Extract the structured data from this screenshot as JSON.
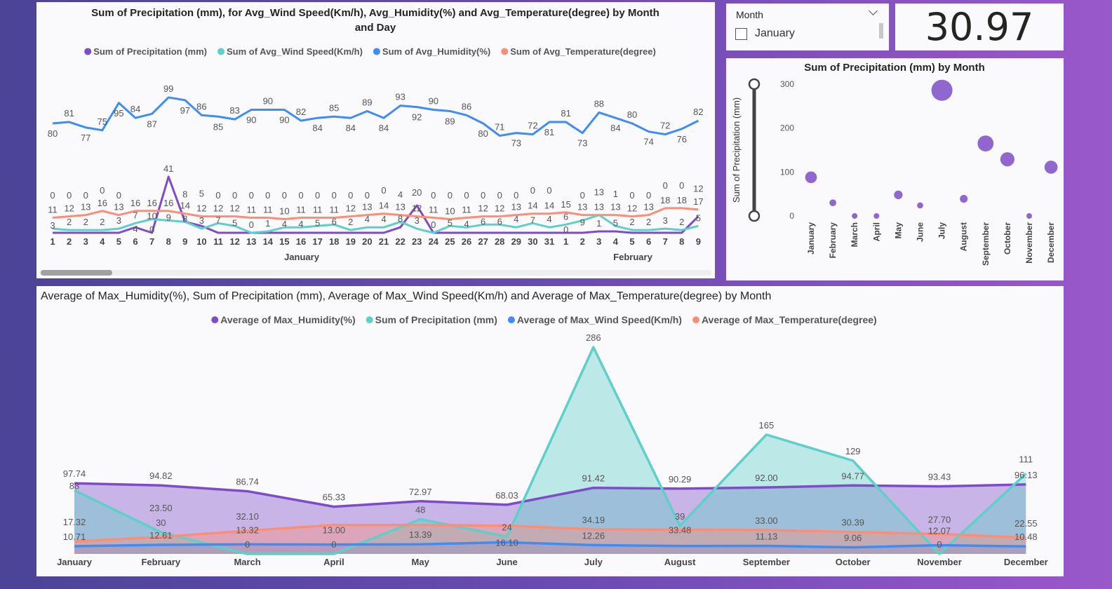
{
  "colors": {
    "purple": "#7d4cc6",
    "teal": "#5fcfc9",
    "blue": "#3f8cf5",
    "orange": "#fb8e77"
  },
  "top_chart": {
    "title_line1": "Sum of Precipitation (mm), for Avg_Wind Speed(Km/h), Avg_Humidity(%) and Avg_Temperature(degree) by Month",
    "title_line2": "and Day",
    "legend": [
      "Sum of Precipitation (mm)",
      "Sum of Avg_Wind Speed(Km/h)",
      "Sum of Avg_Humidity(%)",
      "Sum of Avg_Temperature(degree)"
    ],
    "chart_data": {
      "type": "line",
      "days": [
        "1",
        "2",
        "3",
        "4",
        "5",
        "6",
        "7",
        "8",
        "9",
        "10",
        "11",
        "12",
        "13",
        "14",
        "15",
        "16",
        "17",
        "18",
        "19",
        "20",
        "21",
        "22",
        "23",
        "24",
        "25",
        "26",
        "27",
        "28",
        "29",
        "30",
        "31",
        "1",
        "2",
        "3",
        "4",
        "5",
        "6",
        "7",
        "8",
        "9"
      ],
      "months": [
        "January",
        "February"
      ],
      "series": [
        {
          "name": "Sum of Precipitation (mm)",
          "color": "purple",
          "values": [
            0,
            0,
            0,
            0,
            0,
            4,
            0,
            41,
            8,
            5,
            0,
            0,
            0,
            0,
            0,
            0,
            0,
            0,
            0,
            0,
            0,
            4,
            20,
            0,
            0,
            0,
            0,
            0,
            0,
            0,
            0,
            0,
            0,
            1,
            1,
            0,
            0,
            0,
            0,
            12
          ]
        },
        {
          "name": "Sum of Avg_Wind Speed(Km/h)",
          "color": "teal",
          "values": [
            3,
            2,
            2,
            2,
            3,
            7,
            10,
            9,
            8,
            3,
            7,
            5,
            0,
            1,
            4,
            4,
            5,
            6,
            2,
            4,
            4,
            8,
            3,
            0,
            5,
            4,
            6,
            6,
            4,
            7,
            4,
            6,
            9,
            13,
            5,
            2,
            2,
            3,
            2,
            5
          ]
        },
        {
          "name": "Sum of Avg_Humidity(%)",
          "color": "blue",
          "values": [
            80,
            81,
            77,
            75,
            95,
            84,
            87,
            99,
            97,
            86,
            85,
            83,
            90,
            90,
            90,
            82,
            84,
            85,
            84,
            89,
            84,
            93,
            92,
            90,
            89,
            86,
            80,
            71,
            73,
            72,
            81,
            81,
            73,
            88,
            84,
            80,
            74,
            72,
            76,
            82
          ]
        },
        {
          "name": "Sum of Avg_Temperature(degree)",
          "color": "orange",
          "values": [
            11,
            12,
            13,
            16,
            13,
            16,
            16,
            16,
            14,
            12,
            12,
            12,
            11,
            11,
            10,
            11,
            11,
            11,
            12,
            13,
            14,
            13,
            12,
            11,
            10,
            11,
            12,
            12,
            13,
            14,
            14,
            15,
            13,
            13,
            13,
            12,
            13,
            18,
            18,
            17
          ]
        }
      ]
    }
  },
  "slicer": {
    "title": "Month",
    "item": "January",
    "checked": false
  },
  "card": {
    "value": "30.97"
  },
  "bubble_chart": {
    "title": "Sum of Precipitation (mm) by Month",
    "chart_data": {
      "type": "scatter",
      "ylabel": "Sum of Precipitation (mm)",
      "yticks": [
        "0",
        "100",
        "200",
        "300"
      ],
      "ylim": [
        0,
        300
      ],
      "categories": [
        "January",
        "February",
        "March",
        "April",
        "May",
        "June",
        "July",
        "August",
        "September",
        "October",
        "November",
        "December"
      ],
      "values": [
        88,
        30,
        0,
        0,
        48,
        24,
        286,
        39,
        165,
        129,
        0,
        111
      ]
    }
  },
  "bottom_chart": {
    "title": "Average of Max_Humidity(%), Sum of Precipitation (mm), Average of Max_Wind Speed(Km/h) and Average of Max_Temperature(degree) by Month",
    "chart_data": {
      "type": "area",
      "categories": [
        "January",
        "February",
        "March",
        "April",
        "May",
        "June",
        "July",
        "August",
        "September",
        "October",
        "November",
        "December"
      ],
      "series": [
        {
          "name": "Average of Max_Humidity(%)",
          "color": "purple",
          "values": [
            97.74,
            94.82,
            86.74,
            65.33,
            72.97,
            68.03,
            91.42,
            90.29,
            92.0,
            94.77,
            93.43,
            96.13
          ],
          "labels": [
            "97.74",
            "94.82",
            "86.74",
            "65.33",
            "72.97",
            "68.03",
            "91.42",
            "90.29",
            "92.00",
            "94.77",
            "93.43",
            "96.13"
          ]
        },
        {
          "name": "Sum of Precipitation (mm)",
          "color": "teal",
          "values": [
            88,
            30,
            0,
            0,
            48,
            24,
            286,
            39,
            165,
            129,
            0,
            111
          ],
          "labels": [
            "88",
            "30",
            "0",
            "0",
            "48",
            "24",
            "286",
            "39",
            "165",
            "129",
            "0",
            "111"
          ]
        },
        {
          "name": "Average of Max_Wind Speed(Km/h)",
          "color": "blue",
          "values": [
            10.71,
            12.61,
            13.32,
            13.0,
            13.39,
            16.1,
            12.26,
            11,
            11.13,
            9.06,
            12.07,
            10.48
          ],
          "labels": [
            "10.71",
            "12.61",
            "13.32",
            "13.00",
            "13.39",
            "16.10",
            "12.26",
            "",
            "11.13",
            "9.06",
            "12.07",
            "10.48"
          ]
        },
        {
          "name": "Average of Max_Temperature(degree)",
          "color": "orange",
          "values": [
            17.32,
            23.5,
            32.1,
            40,
            40,
            39,
            34.19,
            33.48,
            33.0,
            30.39,
            27.7,
            22.55
          ],
          "labels": [
            "17.32",
            "23.50",
            "32.10",
            "",
            "",
            "",
            "34.19",
            "33.48",
            "33.00",
            "30.39",
            "27.70",
            "22.55"
          ]
        }
      ]
    }
  }
}
